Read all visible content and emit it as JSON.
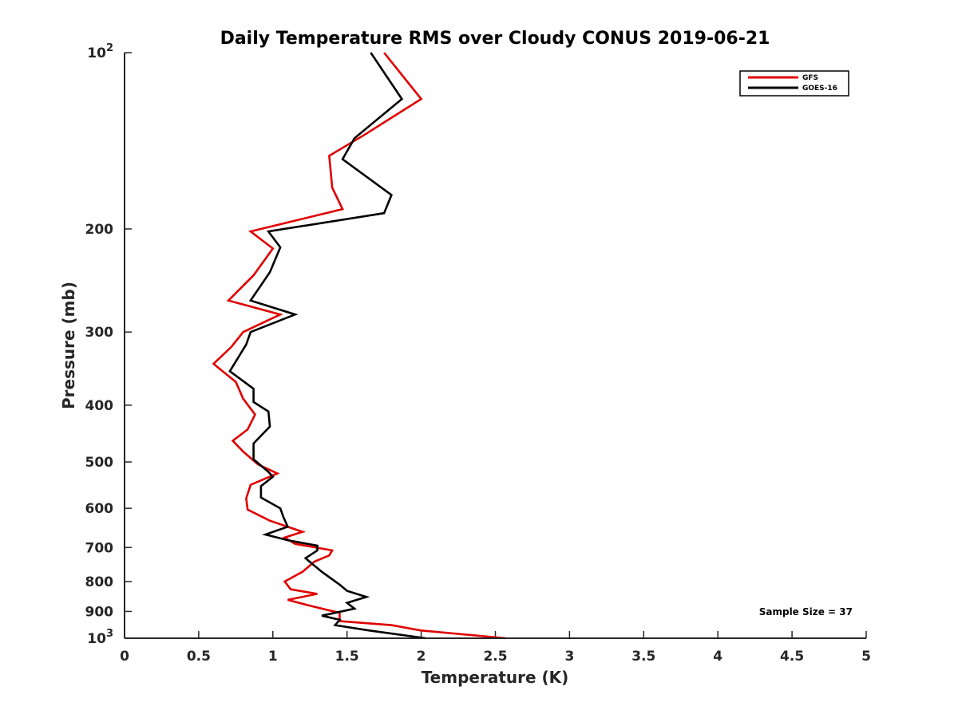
{
  "chart_data": {
    "type": "line",
    "title": "Daily Temperature RMS over Cloudy CONUS 2019-06-21",
    "xlabel": "Temperature (K)",
    "ylabel": "Pressure (mb)",
    "xlim": [
      0,
      5
    ],
    "ylim": [
      100,
      1000
    ],
    "y_scale": "log",
    "y_reversed": true,
    "grid": false,
    "legend_position": "top-right",
    "x_ticks": [
      0,
      0.5,
      1,
      1.5,
      2,
      2.5,
      3,
      3.5,
      4,
      4.5,
      5
    ],
    "x_tick_labels": [
      "0",
      "0.5",
      "1",
      "1.5",
      "2",
      "2.5",
      "3",
      "3.5",
      "4",
      "4.5",
      "5"
    ],
    "y_ticks": [
      {
        "value": 100,
        "base": "10",
        "exp": "2"
      },
      {
        "value": 200,
        "label": "200"
      },
      {
        "value": 300,
        "label": "300"
      },
      {
        "value": 400,
        "label": "400"
      },
      {
        "value": 500,
        "label": "500"
      },
      {
        "value": 600,
        "label": "600"
      },
      {
        "value": 700,
        "label": "700"
      },
      {
        "value": 800,
        "label": "800"
      },
      {
        "value": 900,
        "label": "900"
      },
      {
        "value": 1000,
        "base": "10",
        "exp": "3"
      }
    ],
    "annotation": "Sample Size = 37",
    "series": [
      {
        "name": "GFS",
        "color": "#e00000",
        "points": [
          [
            1.75,
            100
          ],
          [
            2.0,
            120
          ],
          [
            1.62,
            138
          ],
          [
            1.38,
            150
          ],
          [
            1.4,
            170
          ],
          [
            1.47,
            185
          ],
          [
            0.85,
            202
          ],
          [
            1.0,
            216
          ],
          [
            0.87,
            240
          ],
          [
            0.7,
            265
          ],
          [
            1.05,
            280
          ],
          [
            0.8,
            300
          ],
          [
            0.72,
            318
          ],
          [
            0.6,
            340
          ],
          [
            0.75,
            365
          ],
          [
            0.8,
            390
          ],
          [
            0.88,
            415
          ],
          [
            0.83,
            440
          ],
          [
            0.73,
            460
          ],
          [
            0.8,
            480
          ],
          [
            0.9,
            505
          ],
          [
            1.03,
            523
          ],
          [
            0.85,
            547
          ],
          [
            0.82,
            577
          ],
          [
            0.83,
            603
          ],
          [
            0.98,
            630
          ],
          [
            1.2,
            658
          ],
          [
            1.08,
            673
          ],
          [
            1.15,
            690
          ],
          [
            1.4,
            708
          ],
          [
            1.38,
            722
          ],
          [
            1.28,
            740
          ],
          [
            1.2,
            770
          ],
          [
            1.08,
            800
          ],
          [
            1.12,
            825
          ],
          [
            1.3,
            840
          ],
          [
            1.1,
            860
          ],
          [
            1.25,
            880
          ],
          [
            1.45,
            905
          ],
          [
            1.45,
            935
          ],
          [
            1.8,
            950
          ],
          [
            2.0,
            970
          ],
          [
            2.57,
            1000
          ]
        ]
      },
      {
        "name": "GOES-16",
        "color": "#000000",
        "points": [
          [
            1.66,
            100
          ],
          [
            1.87,
            120
          ],
          [
            1.55,
            140
          ],
          [
            1.47,
            152
          ],
          [
            1.8,
            175
          ],
          [
            1.75,
            188
          ],
          [
            0.97,
            202
          ],
          [
            1.05,
            215
          ],
          [
            0.98,
            237
          ],
          [
            0.85,
            265
          ],
          [
            1.15,
            280
          ],
          [
            0.85,
            300
          ],
          [
            0.82,
            315
          ],
          [
            0.71,
            350
          ],
          [
            0.87,
            375
          ],
          [
            0.87,
            395
          ],
          [
            0.97,
            410
          ],
          [
            0.98,
            435
          ],
          [
            0.87,
            465
          ],
          [
            0.87,
            495
          ],
          [
            0.97,
            520
          ],
          [
            1.0,
            530
          ],
          [
            0.92,
            550
          ],
          [
            0.92,
            575
          ],
          [
            1.05,
            600
          ],
          [
            1.07,
            620
          ],
          [
            1.1,
            645
          ],
          [
            0.95,
            665
          ],
          [
            1.1,
            680
          ],
          [
            1.3,
            695
          ],
          [
            1.3,
            708
          ],
          [
            1.22,
            730
          ],
          [
            1.33,
            770
          ],
          [
            1.45,
            810
          ],
          [
            1.5,
            830
          ],
          [
            1.63,
            850
          ],
          [
            1.5,
            870
          ],
          [
            1.55,
            890
          ],
          [
            1.33,
            915
          ],
          [
            1.45,
            930
          ],
          [
            1.42,
            950
          ],
          [
            1.65,
            970
          ],
          [
            2.03,
            1000
          ]
        ]
      }
    ]
  }
}
